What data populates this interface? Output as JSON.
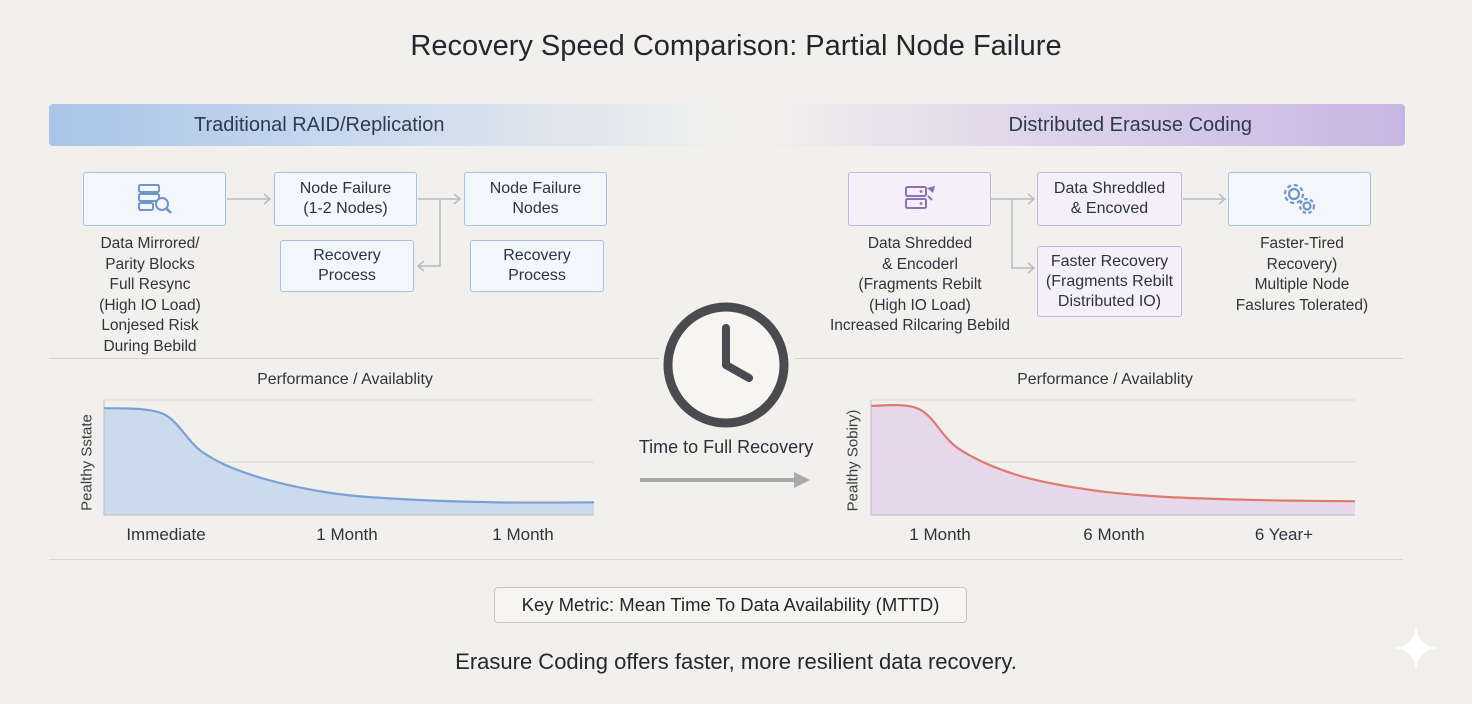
{
  "title": "Recovery Speed Comparison: Partial Node Failure",
  "left": {
    "header": "Traditional RAID/Replication",
    "icon": "database-search-icon",
    "box_failure_a": "Node Failure\n(1-2 Nodes)",
    "box_failure_b": "Node Failure\nNodes",
    "box_recovery_a": "Recovery\nProcess",
    "box_recovery_b": "Recovery\nProcess",
    "caption": "Data Mirrored/\nParity Blocks\nFull Resync\n(High IO Load)\nLonjesed Risk\nDuring Bebild"
  },
  "right": {
    "header": "Distributed Erasuse Coding",
    "icon": "server-shred-icon",
    "box_shredded": "Data Shreddled\n& Encoved",
    "box_faster": "Faster Recovery\n(Fragments Rebilt\nDistributed IO)",
    "gear_icon": "gears-icon",
    "caption_left": "Data Shredded\n& Encoderl\n(Fragments Rebilt\n(High IO Load)\nIncreased Rilcaring Bebild",
    "caption_right": "Faster-Tired\nRecovery)\nMultiple Node\nFaslures Tolerated)"
  },
  "center": {
    "icon": "clock-icon",
    "label": "Time to Full Recovery",
    "arrow_icon": "arrow-right-icon"
  },
  "chart_data": [
    {
      "type": "area",
      "title": "Performance / Availablity",
      "ylabel": "Pealthy Sstate",
      "xlabel": "",
      "categories": [
        "Immediate",
        "1 Month",
        "1 Month"
      ],
      "color": "#7aa0d4",
      "fill": "#c5d6ed",
      "grid": true,
      "x": [
        0,
        0.12,
        0.2,
        0.3,
        0.45,
        0.6,
        0.8,
        1.0
      ],
      "y": [
        0.93,
        0.88,
        0.55,
        0.35,
        0.2,
        0.14,
        0.11,
        0.11
      ]
    },
    {
      "type": "area",
      "title": "Performance / Availablity",
      "ylabel": "Pealthy Sobiry)",
      "xlabel": "",
      "categories": [
        "1 Month",
        "6 Month",
        "6 Year+"
      ],
      "color": "#e07a70",
      "fill": "#e6d3ea",
      "grid": true,
      "x": [
        0,
        0.1,
        0.18,
        0.3,
        0.45,
        0.6,
        0.8,
        1.0
      ],
      "y": [
        0.95,
        0.92,
        0.58,
        0.35,
        0.22,
        0.16,
        0.13,
        0.12
      ]
    }
  ],
  "metric": "Key Metric: Mean Time To Data Availability (MTTD)",
  "footer": "Erasure Coding offers faster, more resilient data recovery.",
  "sparkle_icon": "sparkle-icon"
}
